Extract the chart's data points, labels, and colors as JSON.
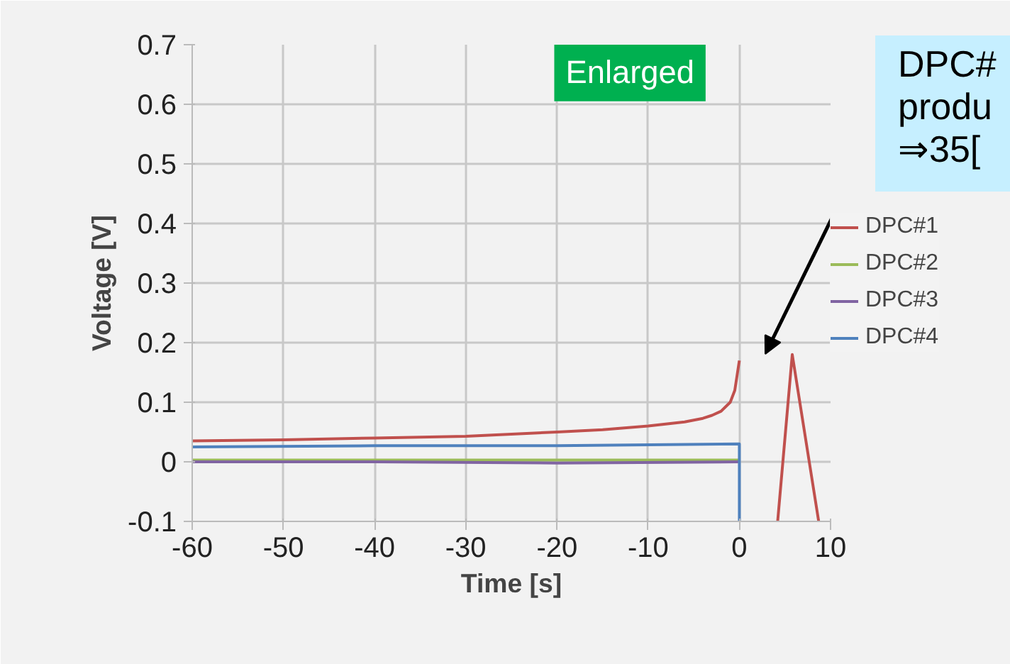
{
  "chart_data": {
    "type": "line",
    "xlabel": "Time [s]",
    "ylabel": "Voltage [V]",
    "xlim": [
      -60,
      10
    ],
    "xticks": [
      -60,
      -50,
      -40,
      -30,
      -20,
      -10,
      0,
      10
    ],
    "ylim": [
      -0.1,
      0.7
    ],
    "yticks": [
      -0.1,
      0,
      0.1,
      0.2,
      0.3,
      0.4,
      0.5,
      0.6,
      0.7
    ],
    "grid": true,
    "legend": "right",
    "annotations": [
      "Enlarged",
      "DPC#\nprodu\n⇒35["
    ],
    "series": [
      {
        "name": "DPC#1",
        "color": "#c0504d",
        "x": [
          -60,
          -50,
          -40,
          -30,
          -20,
          -15,
          -10,
          -6,
          -4,
          -3,
          -2,
          -1,
          -0.5,
          0,
          2,
          4.2,
          5.8,
          8.7
        ],
        "values": [
          0.035,
          0.037,
          0.04,
          0.043,
          0.05,
          0.054,
          0.06,
          0.067,
          0.073,
          0.078,
          0.085,
          0.1,
          0.12,
          0.17,
          null,
          -0.1,
          0.18,
          -0.1
        ]
      },
      {
        "name": "DPC#2",
        "color": "#9bbb59",
        "x": [
          -60,
          -40,
          -20,
          0
        ],
        "values": [
          0.003,
          0.003,
          0.003,
          0.003
        ]
      },
      {
        "name": "DPC#3",
        "color": "#8064a2",
        "x": [
          -60,
          -40,
          -20,
          0
        ],
        "values": [
          0.0,
          0.0,
          -0.002,
          0.0
        ]
      },
      {
        "name": "DPC#4",
        "color": "#4f81bd",
        "x": [
          -60,
          -40,
          -20,
          0,
          0
        ],
        "values": [
          0.025,
          0.027,
          0.027,
          0.03,
          -0.1
        ]
      }
    ]
  }
}
